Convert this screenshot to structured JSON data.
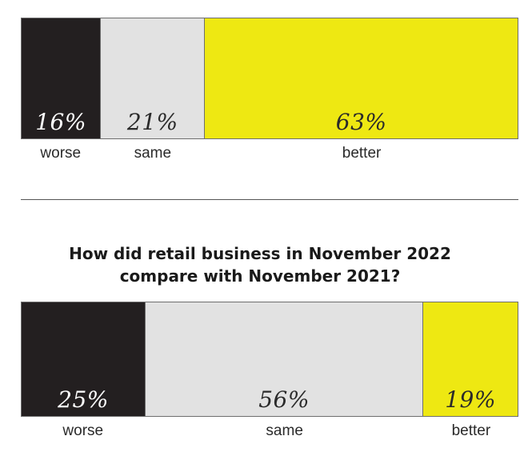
{
  "chart_data": [
    {
      "type": "bar",
      "title": "",
      "categories": [
        "worse",
        "same",
        "better"
      ],
      "values": [
        16,
        21,
        63
      ],
      "value_labels": [
        "16%",
        "21%",
        "63%"
      ],
      "colors": [
        "#231f20",
        "#e2e2e2",
        "#eee812"
      ]
    },
    {
      "type": "bar",
      "title": "How did retail business in November 2022\ncompare with November 2021?",
      "categories": [
        "worse",
        "same",
        "better"
      ],
      "values": [
        25,
        56,
        19
      ],
      "value_labels": [
        "25%",
        "56%",
        "19%"
      ],
      "colors": [
        "#231f20",
        "#e2e2e2",
        "#eee812"
      ]
    }
  ]
}
